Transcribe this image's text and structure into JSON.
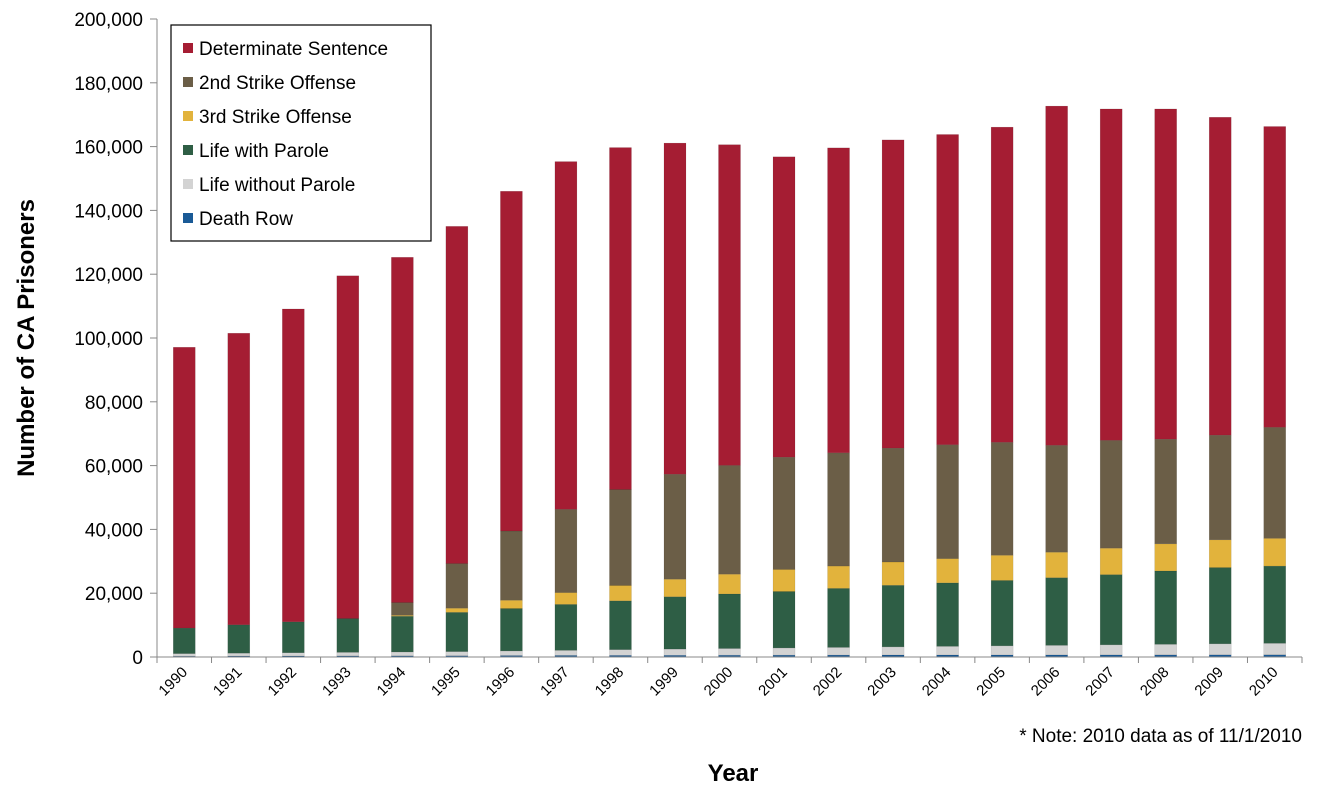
{
  "chart_data": {
    "type": "bar",
    "stacked": true,
    "title": "",
    "xlabel": "Year",
    "ylabel": "Number of CA Prisoners",
    "ylim": [
      0,
      200000
    ],
    "yticks": [
      "0",
      "20,000",
      "40,000",
      "60,000",
      "80,000",
      "100,000",
      "120,000",
      "140,000",
      "160,000",
      "180,000",
      "200,000"
    ],
    "ytick_values": [
      0,
      20000,
      40000,
      60000,
      80000,
      100000,
      120000,
      140000,
      160000,
      180000,
      200000
    ],
    "grid": false,
    "legend_position": "top-left",
    "note": "* Note:  2010 data as of 11/1/2010",
    "categories": [
      "1990",
      "1991",
      "1992",
      "1993",
      "1994",
      "1995",
      "1996",
      "1997",
      "1998",
      "1999",
      "2000",
      "2001",
      "2002",
      "2003",
      "2004",
      "2005",
      "2006",
      "2007",
      "2008",
      "2009",
      "2010"
    ],
    "series": [
      {
        "name": "Death Row",
        "color": "#1a5a96",
        "values": [
          270,
          300,
          330,
          360,
          380,
          400,
          450,
          490,
          510,
          540,
          570,
          590,
          610,
          630,
          640,
          650,
          660,
          670,
          680,
          690,
          700
        ]
      },
      {
        "name": "Life without Parole",
        "color": "#d3d3d3",
        "values": [
          800,
          900,
          1000,
          1100,
          1200,
          1300,
          1450,
          1600,
          1800,
          1950,
          2100,
          2250,
          2400,
          2550,
          2700,
          2850,
          3000,
          3150,
          3300,
          3450,
          3600
        ]
      },
      {
        "name": "Life with Parole",
        "color": "#2e5e45",
        "values": [
          8000,
          8900,
          9700,
          10600,
          11200,
          12300,
          13300,
          14400,
          15300,
          16400,
          17100,
          17700,
          18500,
          19300,
          19900,
          20500,
          21200,
          22000,
          23000,
          23900,
          24200
        ]
      },
      {
        "name": "3rd Strike Offense",
        "color": "#e2b33c",
        "values": [
          0,
          0,
          0,
          0,
          300,
          1300,
          2600,
          3700,
          4800,
          5500,
          6200,
          6900,
          7000,
          7300,
          7600,
          7900,
          8000,
          8300,
          8500,
          8700,
          8700
        ]
      },
      {
        "name": "2nd Strike Offense",
        "color": "#6b5e47",
        "values": [
          0,
          0,
          0,
          0,
          4000,
          14000,
          21700,
          26100,
          30100,
          32900,
          34100,
          35200,
          35500,
          35700,
          35700,
          35400,
          33500,
          33800,
          32800,
          32800,
          34800
        ]
      },
      {
        "name": "Determinate Sentence",
        "color": "#a51d33",
        "values": [
          88030,
          91400,
          98070,
          107440,
          108220,
          105700,
          106500,
          109010,
          107190,
          103810,
          100530,
          94160,
          95590,
          96620,
          97260,
          98800,
          106340,
          103880,
          103520,
          99660,
          94300
        ]
      }
    ],
    "legend_order": [
      "Determinate Sentence",
      "2nd Strike Offense",
      "3rd Strike Offense",
      "Life with Parole",
      "Life without Parole",
      "Death Row"
    ]
  }
}
